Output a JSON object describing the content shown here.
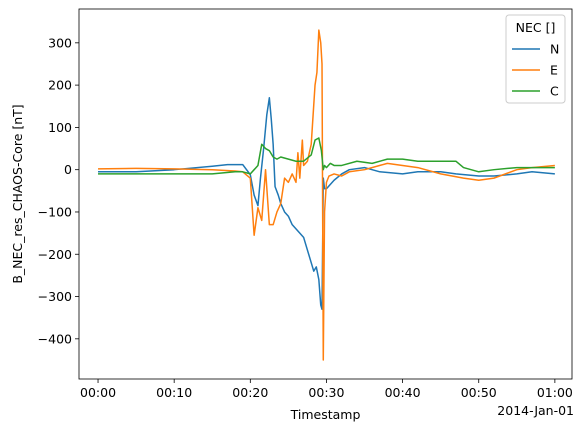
{
  "chart_data": {
    "type": "line",
    "xlabel": "Timestamp",
    "ylabel": "B_NEC_res_CHAOS-Core [nT]",
    "x_offset_label": "2014-Jan-01",
    "xlim": [
      "-00:02:30",
      "01:02:15"
    ],
    "ylim": [
      -495,
      380
    ],
    "x_ticks": [
      "00:00",
      "00:10",
      "00:20",
      "00:30",
      "00:40",
      "00:50",
      "01:00"
    ],
    "y_ticks": [
      300,
      200,
      100,
      0,
      -100,
      -200,
      -300,
      -400
    ],
    "grid": false,
    "legend": {
      "title": "NEC []",
      "placement": "top-right"
    },
    "series": [
      {
        "name": "N",
        "color": "#1f77b4",
        "x": [
          "00:00",
          "00:05",
          "00:10",
          "00:15",
          "00:17",
          "00:19",
          "00:20",
          "00:20:30",
          "00:21",
          "00:21:20",
          "00:21:45",
          "00:22:10",
          "00:22:30",
          "00:22:45",
          "00:23",
          "00:23:15",
          "00:23:40",
          "00:24",
          "00:24:30",
          "00:25",
          "00:25:30",
          "00:26",
          "00:26:30",
          "00:27",
          "00:27:30",
          "00:28",
          "00:28:20",
          "00:28:40",
          "00:29",
          "00:29:15",
          "00:29:25",
          "00:29:35",
          "00:29:45",
          "00:30",
          "00:30:30",
          "00:31",
          "00:32",
          "00:33",
          "00:35",
          "00:37",
          "00:40",
          "00:42",
          "00:45",
          "00:47",
          "00:50",
          "00:52",
          "00:55",
          "00:57",
          "01:00"
        ],
        "y": [
          -5,
          -5,
          0,
          8,
          12,
          12,
          -12,
          -60,
          -85,
          -20,
          50,
          130,
          170,
          120,
          60,
          -40,
          -60,
          -80,
          -100,
          -110,
          -130,
          -140,
          -150,
          -160,
          -190,
          -220,
          -240,
          -230,
          -260,
          -320,
          -330,
          -20,
          -45,
          -45,
          -35,
          -25,
          -10,
          0,
          5,
          -5,
          -10,
          -5,
          -5,
          -10,
          -15,
          -15,
          -10,
          -5,
          -10
        ]
      },
      {
        "name": "E",
        "color": "#ff7f0e",
        "x": [
          "00:00",
          "00:05",
          "00:10",
          "00:15",
          "00:18",
          "00:19",
          "00:20",
          "00:20:30",
          "00:21",
          "00:21:30",
          "00:22",
          "00:22:30",
          "00:23",
          "00:23:30",
          "00:24",
          "00:24:30",
          "00:25",
          "00:25:30",
          "00:26",
          "00:26:15",
          "00:26:30",
          "00:26:50",
          "00:27",
          "00:27:30",
          "00:28",
          "00:28:30",
          "00:28:45",
          "00:29",
          "00:29:15",
          "00:29:25",
          "00:29:35",
          "00:29:45",
          "00:30",
          "00:30:20",
          "00:31",
          "00:32",
          "00:33",
          "00:35",
          "00:38",
          "00:40",
          "00:42",
          "00:45",
          "00:48",
          "00:50",
          "00:52",
          "00:55",
          "00:57",
          "01:00"
        ],
        "y": [
          2,
          3,
          2,
          0,
          -3,
          -5,
          -20,
          -155,
          -90,
          -120,
          0,
          -130,
          -130,
          -100,
          -80,
          -20,
          -30,
          -10,
          -30,
          40,
          -20,
          70,
          10,
          20,
          60,
          200,
          230,
          330,
          300,
          250,
          -450,
          -100,
          -30,
          -15,
          -10,
          -15,
          -5,
          0,
          15,
          10,
          5,
          -10,
          -20,
          -25,
          -20,
          0,
          5,
          10
        ]
      },
      {
        "name": "C",
        "color": "#2ca02c",
        "x": [
          "00:00",
          "00:05",
          "00:10",
          "00:15",
          "00:18",
          "00:19",
          "00:20",
          "00:20:30",
          "00:21",
          "00:21:30",
          "00:22",
          "00:22:30",
          "00:23",
          "00:23:30",
          "00:24",
          "00:25",
          "00:26",
          "00:27",
          "00:28",
          "00:28:30",
          "00:29",
          "00:29:20",
          "00:29:35",
          "00:29:45",
          "00:30",
          "00:30:30",
          "00:31",
          "00:32",
          "00:34",
          "00:36",
          "00:38",
          "00:40",
          "00:42",
          "00:45",
          "00:47",
          "00:48",
          "00:50",
          "00:52",
          "00:55",
          "00:57",
          "01:00"
        ],
        "y": [
          -10,
          -10,
          -10,
          -10,
          -5,
          -5,
          -10,
          0,
          10,
          60,
          50,
          45,
          30,
          25,
          30,
          25,
          20,
          20,
          35,
          70,
          75,
          45,
          0,
          10,
          5,
          15,
          10,
          10,
          20,
          15,
          25,
          25,
          20,
          20,
          20,
          5,
          -5,
          0,
          5,
          5,
          5
        ]
      }
    ]
  }
}
